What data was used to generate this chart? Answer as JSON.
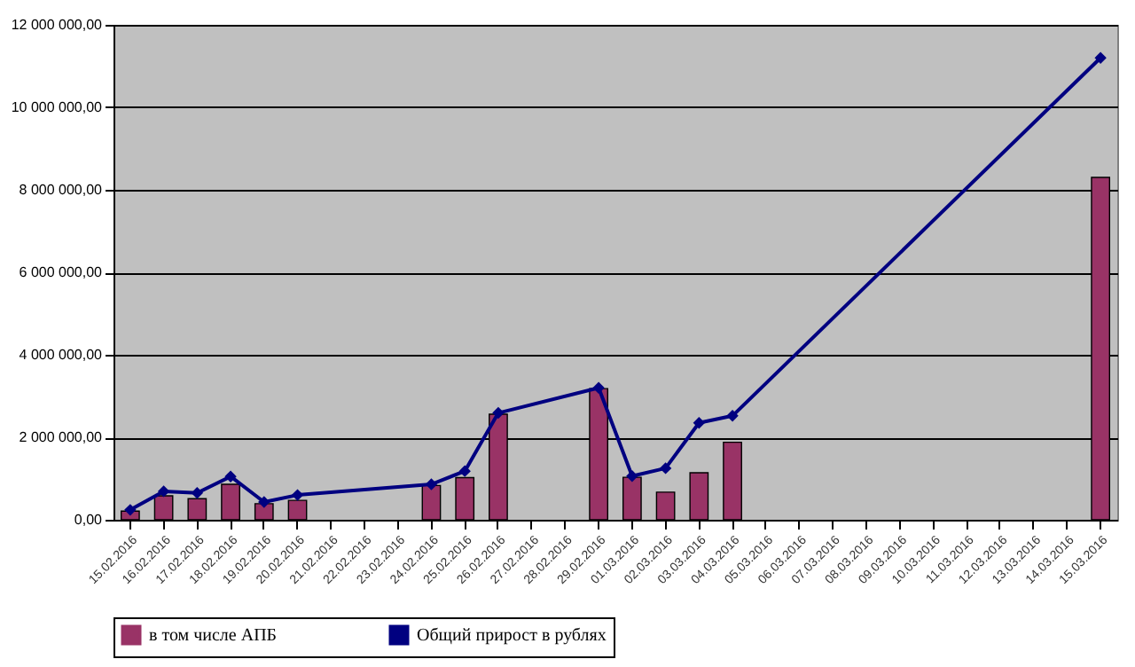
{
  "chart_data": {
    "type": "bar",
    "categories": [
      "15.02.2016",
      "16.02.2016",
      "17.02.2016",
      "18.02.2016",
      "19.02.2016",
      "20.02.2016",
      "21.02.2016",
      "22.02.2016",
      "23.02.2016",
      "24.02.2016",
      "25.02.2016",
      "26.02.2016",
      "27.02.2016",
      "28.02.2016",
      "29.02.2016",
      "01.03.2016",
      "02.03.2016",
      "03.03.2016",
      "04.03.2016",
      "05.03.2016",
      "06.03.2016",
      "07.03.2016",
      "08.03.2016",
      "09.03.2016",
      "10.03.2016",
      "11.03.2016",
      "12.03.2016",
      "13.03.2016",
      "14.03.2016",
      "15.03.2016"
    ],
    "series": [
      {
        "name": "в том числе АПБ",
        "color": "#993366",
        "values": [
          210000,
          580000,
          510000,
          860000,
          390000,
          470000,
          null,
          null,
          null,
          830000,
          1020000,
          2560000,
          null,
          null,
          3180000,
          1030000,
          670000,
          1140000,
          1880000,
          null,
          null,
          null,
          null,
          null,
          null,
          null,
          null,
          null,
          null,
          8300000
        ]
      },
      {
        "name": "Общий прирост в рублях",
        "color": "#000080",
        "type": "line",
        "marker": "diamond",
        "values": [
          240000,
          690000,
          650000,
          1050000,
          430000,
          600000,
          null,
          null,
          null,
          860000,
          1180000,
          2590000,
          null,
          null,
          3200000,
          1060000,
          1250000,
          2350000,
          2520000,
          null,
          null,
          null,
          null,
          null,
          null,
          null,
          null,
          null,
          null,
          11200000
        ]
      }
    ],
    "ylim": [
      0,
      12000000
    ],
    "yticks": [
      {
        "value": 0,
        "label": "0,00"
      },
      {
        "value": 2000000,
        "label": "2 000 000,00"
      },
      {
        "value": 4000000,
        "label": "4 000 000,00"
      },
      {
        "value": 6000000,
        "label": "6 000 000,00"
      },
      {
        "value": 8000000,
        "label": "8 000 000,00"
      },
      {
        "value": 10000000,
        "label": "10 000 000,00"
      },
      {
        "value": 12000000,
        "label": "12 000 000,00"
      }
    ],
    "grid": "y",
    "legend": "bottom",
    "line_style": "solid"
  }
}
